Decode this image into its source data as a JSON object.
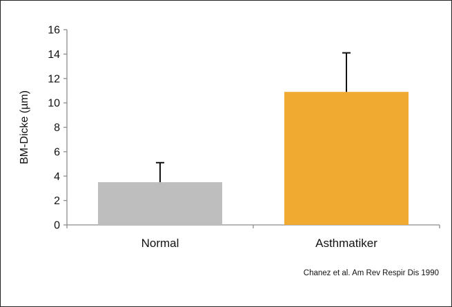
{
  "chart_data": {
    "type": "bar",
    "categories": [
      "Normal",
      "Asthmatiker"
    ],
    "values": [
      3.5,
      10.9
    ],
    "errors": [
      1.6,
      3.2
    ],
    "colors": [
      "#BEBEBE",
      "#F0AA32"
    ],
    "ylabel": "BM-Dicke (µm)",
    "xlabel": "",
    "ylim": [
      0,
      16
    ],
    "yticks": [
      0,
      2,
      4,
      6,
      8,
      10,
      12,
      14,
      16
    ],
    "grid": false
  },
  "citation": "Chanez et al. Am Rev Respir Dis 1990"
}
